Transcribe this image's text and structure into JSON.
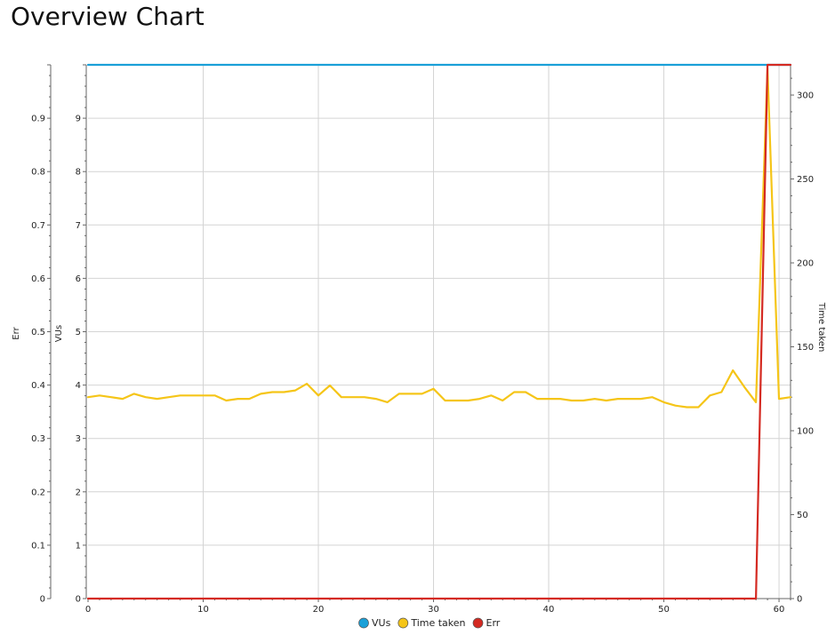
{
  "page": {
    "title": "Overview Chart"
  },
  "chart_data": {
    "type": "line",
    "title": "",
    "grid": true,
    "legend_placement": "bottom-center",
    "axes": {
      "x": {
        "range": [
          0,
          61
        ],
        "ticks": [
          0,
          10,
          20,
          30,
          40,
          50,
          60
        ]
      },
      "err": {
        "label": "Err",
        "side": "left-outer",
        "range": [
          0,
          1
        ],
        "ticks": [
          0,
          0.1,
          0.2,
          0.3,
          0.4,
          0.5,
          0.6,
          0.7,
          0.8,
          0.9
        ],
        "tick_labels": [
          "0",
          "0.1",
          "0.2",
          "0.3",
          "0.4",
          "0.5",
          "0.6",
          "0.7",
          "0.8",
          "0.9"
        ]
      },
      "vus": {
        "label": "VUs",
        "side": "left-inner",
        "range": [
          0,
          10
        ],
        "ticks": [
          0,
          1,
          2,
          3,
          4,
          5,
          6,
          7,
          8,
          9
        ],
        "tick_labels": [
          "0",
          "1",
          "2",
          "3",
          "4",
          "5",
          "6",
          "7",
          "8",
          "9"
        ]
      },
      "time": {
        "label": "Time taken",
        "side": "right",
        "range": [
          0,
          318
        ],
        "ticks": [
          0,
          50,
          100,
          150,
          200,
          250,
          300
        ],
        "tick_labels": [
          "0",
          "50",
          "100",
          "150",
          "200",
          "250",
          "300"
        ]
      }
    },
    "series": [
      {
        "name": "VUs",
        "axis": "vus",
        "color": "#1aa0d8",
        "x": [
          0,
          61
        ],
        "values": [
          10,
          10
        ]
      },
      {
        "name": "Time taken",
        "axis": "time",
        "color": "#f5c518",
        "x": [
          0,
          1,
          2,
          3,
          4,
          5,
          6,
          7,
          8,
          9,
          10,
          11,
          12,
          13,
          14,
          15,
          16,
          17,
          18,
          19,
          20,
          21,
          22,
          23,
          24,
          25,
          26,
          27,
          28,
          29,
          30,
          31,
          32,
          33,
          34,
          35,
          36,
          37,
          38,
          39,
          40,
          41,
          42,
          43,
          44,
          45,
          46,
          47,
          48,
          49,
          50,
          51,
          52,
          53,
          54,
          55,
          56,
          57,
          58,
          59,
          60,
          61
        ],
        "values": [
          120,
          121,
          120,
          119,
          122,
          120,
          119,
          120,
          121,
          121,
          121,
          121,
          118,
          119,
          119,
          122,
          123,
          123,
          124,
          128,
          121,
          127,
          120,
          120,
          120,
          119,
          117,
          122,
          122,
          122,
          125,
          118,
          118,
          118,
          119,
          121,
          118,
          123,
          123,
          119,
          119,
          119,
          118,
          118,
          119,
          118,
          119,
          119,
          119,
          120,
          117,
          115,
          114,
          114,
          121,
          123,
          136,
          126,
          117,
          316,
          119,
          120
        ]
      },
      {
        "name": "Err",
        "axis": "err",
        "color": "#d42a22",
        "x": [
          0,
          58,
          59,
          61
        ],
        "values": [
          0,
          0,
          1,
          1
        ]
      }
    ]
  }
}
